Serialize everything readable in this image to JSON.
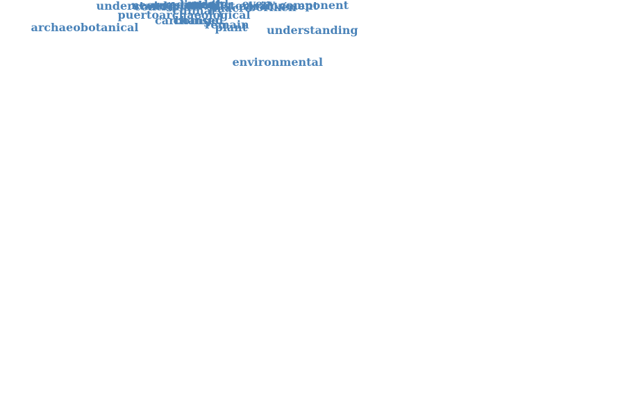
{
  "color": "#4a83b9",
  "words": [
    {
      "key": "environmental",
      "text": "environmental"
    },
    {
      "key": "archaeobotany",
      "text": "archaeobotany"
    },
    {
      "key": "vulnerability",
      "text": "vulnerability"
    },
    {
      "key": "indigenous",
      "text": "indigenous"
    },
    {
      "key": "socioecosystem",
      "text": "socioecosystem"
    },
    {
      "key": "caribbean",
      "text": "caribbean"
    },
    {
      "key": "understanding",
      "text": "understanding"
    },
    {
      "key": "archaeobotanical",
      "text": "archaeobotanical"
    },
    {
      "key": "dynamic",
      "text": "dynamic"
    },
    {
      "key": "perspective",
      "text": "perspective"
    },
    {
      "key": "plant",
      "text": "plant"
    },
    {
      "key": "remain",
      "text": "remain"
    },
    {
      "key": "carbonised",
      "text": "carbonised"
    },
    {
      "key": "change",
      "text": "change"
    },
    {
      "key": "archaeology",
      "text": "archaeology"
    },
    {
      "key": "puertoarchaeological",
      "text": "puertoarchaeological"
    },
    {
      "key": "precolonial",
      "text": "precolonial"
    },
    {
      "key": "social",
      "text": "social"
    },
    {
      "key": "tradition",
      "text": "tradition"
    },
    {
      "key": "human",
      "text": "human"
    },
    {
      "key": "time",
      "text": "time"
    },
    {
      "key": "culinary",
      "text": "culinary"
    },
    {
      "key": "tropical",
      "text": "tropical"
    },
    {
      "key": "microscope",
      "text": "microscope"
    },
    {
      "key": "framework",
      "text": "framework"
    },
    {
      "key": "research",
      "text": "research"
    },
    {
      "key": "investigation",
      "text": "investigation"
    },
    {
      "key": "analysis",
      "text": "analysis"
    },
    {
      "key": "macro",
      "text": "macro"
    },
    {
      "key": "antillean",
      "text": "antillean"
    },
    {
      "key": "island",
      "text": "island"
    },
    {
      "key": "contribute",
      "text": "contribute"
    },
    {
      "key": "understand",
      "text": "understand"
    },
    {
      "key": "historical",
      "text": "historical"
    },
    {
      "key": "boriken",
      "text": "borikén"
    },
    {
      "key": "environment",
      "text": "environment"
    },
    {
      "key": "component",
      "text": "component"
    },
    {
      "key": "activity",
      "text": "activity"
    },
    {
      "key": "pearsall",
      "text": "pearsall"
    },
    {
      "key": "societies",
      "text": "societies"
    },
    {
      "key": "plate",
      "text": "plate"
    },
    {
      "key": "past",
      "text": "past"
    },
    {
      "key": "current",
      "text": "current"
    },
    {
      "key": "earth",
      "text": "earth"
    },
    {
      "key": "century",
      "text": "century"
    },
    {
      "key": "pathway",
      "text": "pathway"
    },
    {
      "key": "botanical",
      "text": "botanical"
    },
    {
      "key": "making",
      "text": "making"
    },
    {
      "key": "starch",
      "text": "starch"
    },
    {
      "key": "neotropical",
      "text": "neotropical"
    },
    {
      "key": "sediment",
      "text": "sediment"
    },
    {
      "key": "vegetation",
      "text": "vegetation"
    },
    {
      "key": "people",
      "text": "people"
    },
    {
      "key": "record",
      "text": "record"
    },
    {
      "key": "term",
      "text": "term"
    },
    {
      "key": "result",
      "text": "result"
    },
    {
      "key": "rico",
      "text": "rico"
    },
    {
      "key": "every",
      "text": "every"
    },
    {
      "key": "cal",
      "text": "cal"
    }
  ]
}
